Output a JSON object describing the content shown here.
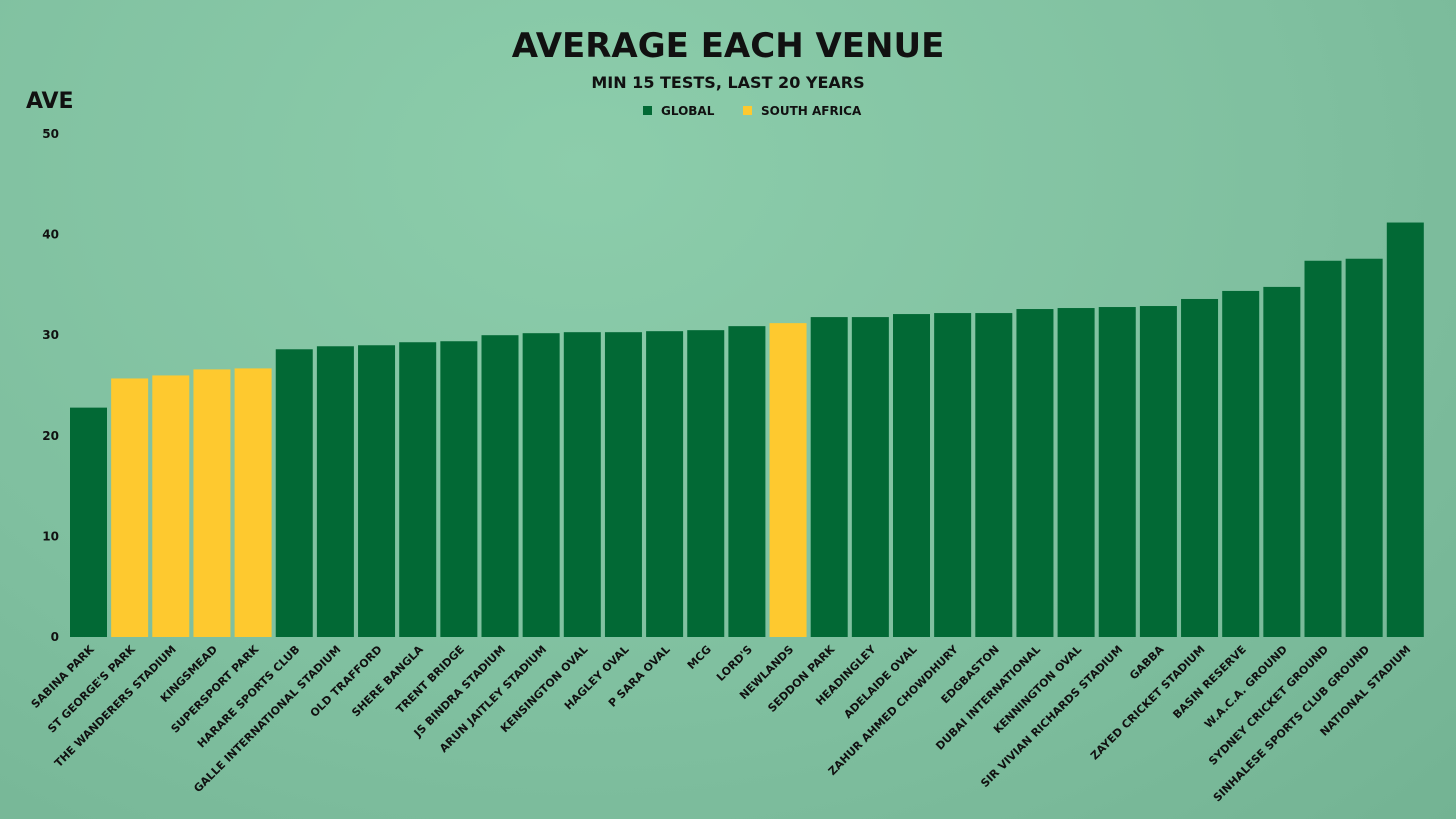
{
  "colors": {
    "global": "#026935",
    "south_africa": "#fec92f"
  },
  "chart_data": {
    "type": "bar",
    "title": "AVERAGE EACH VENUE",
    "subtitle": "MIN 15 TESTS, LAST 20 YEARS",
    "xlabel": "",
    "ylabel": "AVE",
    "ylim": [
      0,
      50
    ],
    "yticks": [
      "0",
      "10",
      "20",
      "30",
      "40",
      "50"
    ],
    "grid": false,
    "legend": {
      "placement": "top-center",
      "entries": [
        {
          "name": "GLOBAL",
          "color": "#026935"
        },
        {
          "name": "SOUTH AFRICA",
          "color": "#fec92f"
        }
      ]
    },
    "categories": [
      "SABINA PARK",
      "ST GEORGE'S PARK",
      "THE WANDERERS STADIUM",
      "KINGSMEAD",
      "SUPERSPORT PARK",
      "HARARE SPORTS CLUB",
      "GALLE INTERNATIONAL STADIUM",
      "OLD TRAFFORD",
      "SHERE BANGLA",
      "TRENT BRIDGE",
      "JS BINDRA STADIUM",
      "ARUN JAITLEY STADIUM",
      "KENSINGTON OVAL",
      "HAGLEY OVAL",
      "P SARA OVAL",
      "MCG",
      "LORD'S",
      "NEWLANDS",
      "SEDDON PARK",
      "HEADINGLEY",
      "ADELAIDE OVAL",
      "ZAHUR AHMED CHOWDHURY",
      "EDGBASTON",
      "DUBAI INTERNATIONAL",
      "KENNINGTON OVAL",
      "SIR VIVIAN RICHARDS STADIUM",
      "GABBA",
      "ZAYED CRICKET STADIUM",
      "BASIN RESERVE",
      "W.A.C.A. GROUND",
      "SYDNEY CRICKET GROUND",
      "SINHALESE SPORTS CLUB GROUND",
      "NATIONAL STADIUM"
    ],
    "values": [
      22.8,
      25.7,
      26.0,
      26.6,
      26.7,
      28.6,
      28.9,
      29.0,
      29.3,
      29.4,
      30.0,
      30.2,
      30.3,
      30.3,
      30.4,
      30.5,
      30.9,
      31.2,
      31.8,
      31.8,
      32.1,
      32.2,
      32.2,
      32.6,
      32.7,
      32.8,
      32.9,
      33.6,
      34.4,
      34.8,
      37.4,
      37.6,
      41.2
    ],
    "series_membership": [
      "GLOBAL",
      "SOUTH AFRICA",
      "SOUTH AFRICA",
      "SOUTH AFRICA",
      "SOUTH AFRICA",
      "GLOBAL",
      "GLOBAL",
      "GLOBAL",
      "GLOBAL",
      "GLOBAL",
      "GLOBAL",
      "GLOBAL",
      "GLOBAL",
      "GLOBAL",
      "GLOBAL",
      "GLOBAL",
      "GLOBAL",
      "SOUTH AFRICA",
      "GLOBAL",
      "GLOBAL",
      "GLOBAL",
      "GLOBAL",
      "GLOBAL",
      "GLOBAL",
      "GLOBAL",
      "GLOBAL",
      "GLOBAL",
      "GLOBAL",
      "GLOBAL",
      "GLOBAL",
      "GLOBAL",
      "GLOBAL",
      "GLOBAL"
    ]
  }
}
